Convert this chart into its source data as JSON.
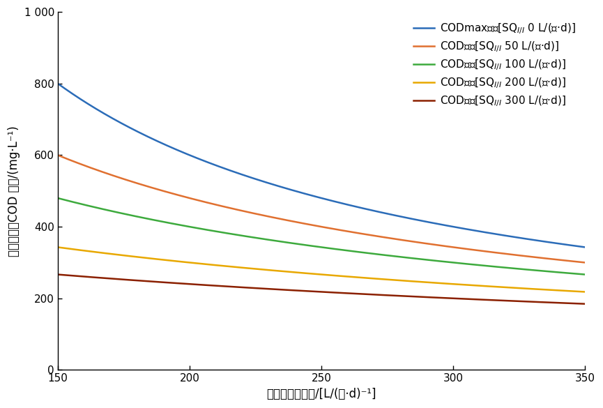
{
  "x_start": 150,
  "x_end": 350,
  "x_ticks": [
    150,
    200,
    250,
    300,
    350
  ],
  "y_lim": [
    0,
    1000
  ],
  "y_ticks": [
    0,
    200,
    400,
    600,
    800,
    "1 000"
  ],
  "y_ticks_vals": [
    0,
    200,
    400,
    600,
    800,
    1000
  ],
  "xlabel": "个人综合用水量/[L/(人·d)⁻¹]",
  "ylabel": "管网内污水COD 浓度/(mg·L⁻¹)",
  "series": [
    {
      "label": "CODmax浓度[SQ$_{I/I}$ 0 L/(人·d)]",
      "color": "#2B6CB8",
      "sq": 0,
      "cod_base": 120000
    },
    {
      "label": "COD浓度[SQ$_{I/I}$ 50 L/(人·d)]",
      "color": "#E07030",
      "sq": 50,
      "cod_base": 120000
    },
    {
      "label": "COD浓度[SQ$_{I/I}$ 100 L/(人·d)]",
      "color": "#3DAA3D",
      "sq": 100,
      "cod_base": 120000
    },
    {
      "label": "COD浓度[SQ$_{I/I}$ 200 L/(人·d)]",
      "color": "#E8A800",
      "sq": 200,
      "cod_base": 120000
    },
    {
      "label": "COD浓度[SQ$_{I/I}$ 300 L/(人·d)]",
      "color": "#8B2000",
      "sq": 300,
      "cod_base": 120000
    }
  ],
  "legend_loc": "upper right",
  "legend_fontsize": 11,
  "axis_fontsize": 12,
  "tick_fontsize": 11,
  "linewidth": 1.8
}
